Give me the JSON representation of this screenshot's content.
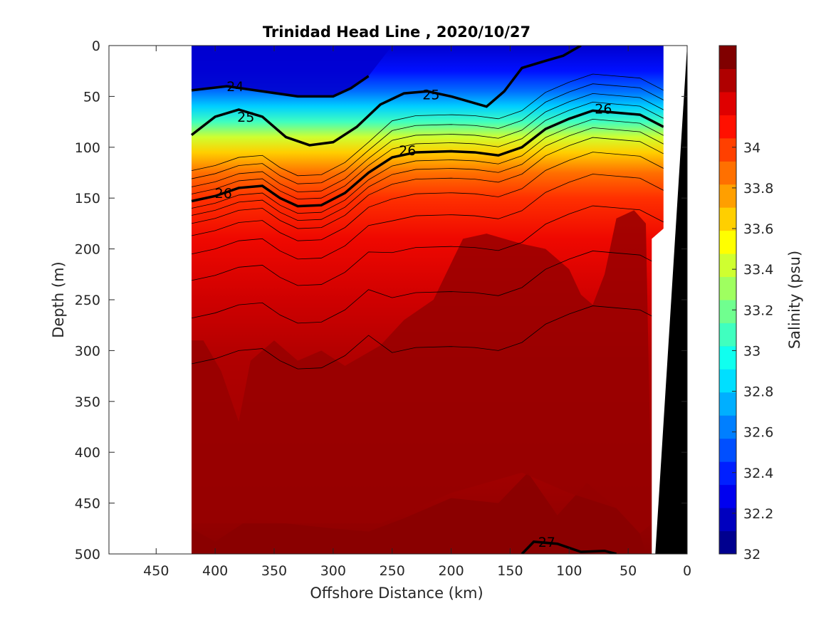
{
  "chart_data": {
    "type": "heatmap",
    "title": "Trinidad Head Line , 2020/10/27",
    "xlabel": "Offshore Distance (km)",
    "ylabel": "Depth (m)",
    "colorbar_label": "Salinity (psu)",
    "xlim": [
      490,
      0
    ],
    "ylim": [
      500,
      0
    ],
    "x_reversed": true,
    "y_reversed": true,
    "x_ticks": [
      450,
      400,
      350,
      300,
      250,
      200,
      150,
      100,
      50,
      0
    ],
    "y_ticks": [
      0,
      50,
      100,
      150,
      200,
      250,
      300,
      350,
      400,
      450,
      500
    ],
    "colorbar_range": [
      32,
      34.5
    ],
    "colorbar_ticks": [
      32,
      32.2,
      32.4,
      32.6,
      32.8,
      33,
      33.2,
      33.4,
      33.6,
      33.8,
      34
    ],
    "colorbar_colors": [
      "#00008f",
      "#0000bf",
      "#0000ef",
      "#001fff",
      "#004fff",
      "#007fff",
      "#00afff",
      "#00dfff",
      "#10ffef",
      "#40ffbf",
      "#70ff8f",
      "#9fff60",
      "#cfff30",
      "#ffff00",
      "#ffcf00",
      "#ff9f00",
      "#ff7000",
      "#ff4000",
      "#ff1000",
      "#df0000",
      "#af0000",
      "#800000"
    ],
    "data_extent_km": [
      420,
      20
    ],
    "contour_lines": [
      {
        "level": "24",
        "bold": true,
        "x": [
          420,
          390,
          360,
          330,
          300,
          285,
          270
        ],
        "y": [
          44,
          40,
          45,
          50,
          50,
          42,
          30
        ]
      },
      {
        "level": "25",
        "bold": true,
        "x": [
          420,
          400,
          380,
          360,
          340,
          320,
          300,
          280,
          260,
          240,
          220,
          200,
          170,
          155,
          140,
          120,
          105,
          90
        ],
        "y": [
          88,
          70,
          63,
          70,
          90,
          98,
          95,
          80,
          58,
          47,
          45,
          50,
          60,
          45,
          22,
          15,
          10,
          0
        ]
      },
      {
        "level": "26",
        "bold": true,
        "x": [
          420,
          400,
          380,
          360,
          345,
          330,
          310,
          290,
          270,
          250,
          230,
          200,
          180,
          160,
          140,
          120,
          100,
          80,
          60,
          40,
          20
        ],
        "y": [
          153,
          148,
          140,
          138,
          150,
          158,
          157,
          145,
          125,
          110,
          105,
          104,
          105,
          108,
          100,
          82,
          72,
          64,
          66,
          68,
          80
        ]
      },
      {
        "level": "27",
        "bold": true,
        "x": [
          140,
          130,
          110,
          90,
          70,
          60
        ],
        "y": [
          500,
          488,
          490,
          498,
          497,
          500
        ]
      }
    ],
    "contour_labels": [
      {
        "text": "24",
        "x": 383,
        "y": 40
      },
      {
        "text": "25",
        "x": 374,
        "y": 70
      },
      {
        "text": "25",
        "x": 217,
        "y": 48
      },
      {
        "text": "26",
        "x": 393,
        "y": 145
      },
      {
        "text": "26",
        "x": 237,
        "y": 103
      },
      {
        "text": "26",
        "x": 71,
        "y": 62
      },
      {
        "text": "27",
        "x": 119,
        "y": 488
      }
    ],
    "bathymetry_black": [
      [
        27,
        500
      ],
      [
        0,
        500
      ],
      [
        0,
        0
      ]
    ],
    "grid": false
  }
}
